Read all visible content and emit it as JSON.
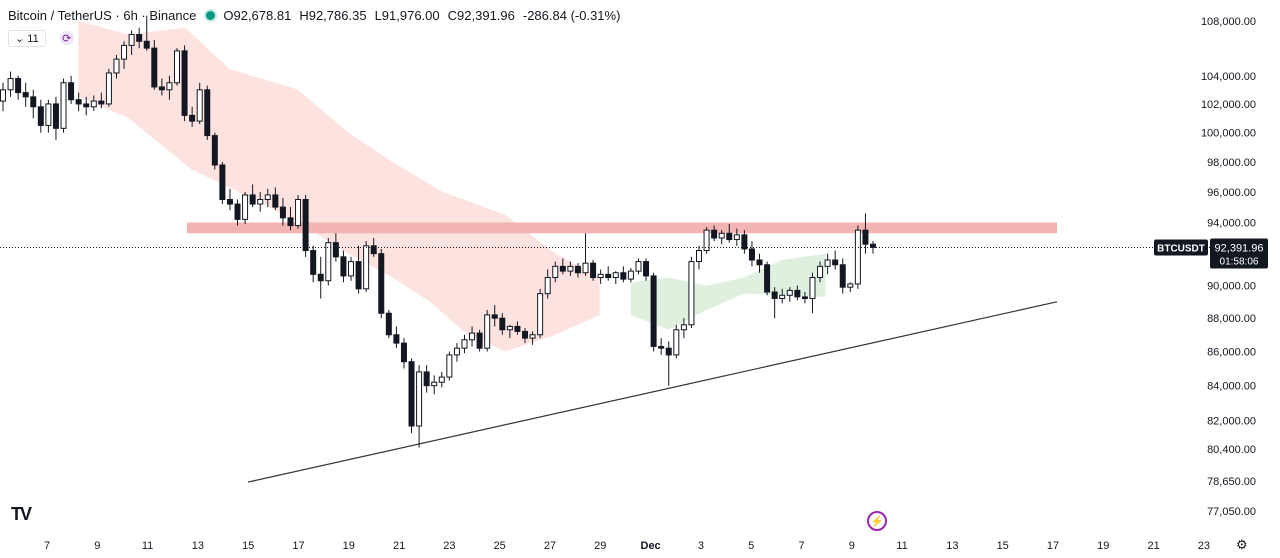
{
  "header": {
    "title": "Bitcoin / TetherUS · 6h · Binance",
    "open_key": "O",
    "open": "92,678.81",
    "high_key": "H",
    "high": "92,786.35",
    "low_key": "L",
    "low": "91,976.00",
    "close_key": "C",
    "close": "92,391.96",
    "change": "-286.84 (-0.31%)"
  },
  "indicators": {
    "toggle_label": "⌄ 11"
  },
  "price_label": {
    "symbol": "BTCUSDT",
    "price": "92,391.96",
    "countdown": "01:58:06"
  },
  "icons": {
    "logo": "tradingview-logo-icon",
    "alert": "lightning-icon",
    "settings": "gear-icon"
  },
  "colors": {
    "up": "#131722",
    "down": "#131722",
    "resistance": "#f3b4b4",
    "cloud_bear": "#fde3df",
    "cloud_bull": "#dff0df",
    "trendline": "#333333"
  },
  "chart_data": {
    "type": "candlestick",
    "symbol": "BTCUSDT",
    "interval": "6h",
    "x_ticks": [
      "7",
      "9",
      "11",
      "13",
      "15",
      "17",
      "19",
      "21",
      "23",
      "25",
      "27",
      "29",
      "Dec",
      "3",
      "5",
      "7",
      "9",
      "11",
      "13",
      "15",
      "17",
      "19",
      "21",
      "23"
    ],
    "y_ticks": [
      "108,000.00",
      "104,000.00",
      "102,000.00",
      "100,000.00",
      "98,000.00",
      "96,000.00",
      "94,000.00",
      "90,000.00",
      "88,000.00",
      "86,000.00",
      "84,000.00",
      "82,000.00",
      "80,400.00",
      "78,650.00",
      "77,050.00"
    ],
    "y_scale": "log",
    "y_range": [
      76500,
      109000
    ],
    "candles": [
      [
        102200,
        103500,
        101500,
        103000
      ],
      [
        103000,
        104300,
        102500,
        103800
      ],
      [
        103800,
        104000,
        102300,
        102800
      ],
      [
        102800,
        103500,
        101800,
        102500
      ],
      [
        102500,
        103000,
        101000,
        101800
      ],
      [
        101800,
        102300,
        100000,
        100500
      ],
      [
        100500,
        102300,
        100000,
        102000
      ],
      [
        102000,
        102500,
        99500,
        100300
      ],
      [
        100300,
        103800,
        100000,
        103500
      ],
      [
        103500,
        104000,
        102000,
        102300
      ],
      [
        102300,
        102800,
        101500,
        102000
      ],
      [
        102000,
        102500,
        101200,
        101800
      ],
      [
        101800,
        102600,
        101500,
        102200
      ],
      [
        102200,
        102800,
        101700,
        102000
      ],
      [
        102000,
        104500,
        101800,
        104200
      ],
      [
        104200,
        105500,
        103800,
        105200
      ],
      [
        105200,
        106500,
        104500,
        106200
      ],
      [
        106200,
        107300,
        105500,
        107000
      ],
      [
        107000,
        107500,
        106000,
        106500
      ],
      [
        106500,
        108400,
        105800,
        106000
      ],
      [
        106000,
        106600,
        103000,
        103200
      ],
      [
        103200,
        103800,
        102600,
        103000
      ],
      [
        103000,
        104000,
        102300,
        103500
      ],
      [
        103500,
        106000,
        103300,
        105800
      ],
      [
        105800,
        106200,
        100800,
        101200
      ],
      [
        101200,
        101800,
        100400,
        100800
      ],
      [
        100800,
        103500,
        100600,
        103000
      ],
      [
        103000,
        103300,
        99500,
        99800
      ],
      [
        99800,
        100000,
        97500,
        97800
      ],
      [
        97800,
        98000,
        95200,
        95500
      ],
      [
        95500,
        96200,
        94800,
        95200
      ],
      [
        95200,
        95500,
        93800,
        94200
      ],
      [
        94200,
        96000,
        93900,
        95800
      ],
      [
        95800,
        96500,
        95000,
        95200
      ],
      [
        95200,
        96000,
        94700,
        95500
      ],
      [
        95500,
        96200,
        95000,
        95800
      ],
      [
        95800,
        96300,
        94800,
        95000
      ],
      [
        95000,
        95600,
        93800,
        94300
      ],
      [
        94300,
        95000,
        93500,
        93800
      ],
      [
        93800,
        95800,
        93600,
        95500
      ],
      [
        95500,
        95800,
        91800,
        92200
      ],
      [
        92200,
        92500,
        90200,
        90700
      ],
      [
        90700,
        91800,
        89200,
        90300
      ],
      [
        90300,
        93000,
        90000,
        92700
      ],
      [
        92700,
        93300,
        91500,
        91800
      ],
      [
        91800,
        92200,
        90200,
        90600
      ],
      [
        90600,
        91800,
        90300,
        91500
      ],
      [
        91500,
        92500,
        89500,
        89800
      ],
      [
        89800,
        92800,
        89600,
        92500
      ],
      [
        92500,
        93000,
        91800,
        92000
      ],
      [
        92000,
        92300,
        88000,
        88300
      ],
      [
        88300,
        88500,
        86800,
        87000
      ],
      [
        87000,
        87500,
        86200,
        86500
      ],
      [
        86500,
        86800,
        85000,
        85400
      ],
      [
        85400,
        85600,
        81300,
        81700
      ],
      [
        81700,
        85200,
        80500,
        84800
      ],
      [
        84800,
        85200,
        83600,
        84000
      ],
      [
        84000,
        84600,
        83500,
        84200
      ],
      [
        84200,
        84800,
        83900,
        84500
      ],
      [
        84500,
        86000,
        84300,
        85800
      ],
      [
        85800,
        86500,
        85400,
        86200
      ],
      [
        86200,
        87000,
        85900,
        86700
      ],
      [
        86700,
        87500,
        86300,
        87100
      ],
      [
        87100,
        87300,
        86000,
        86200
      ],
      [
        86200,
        88500,
        86000,
        88200
      ],
      [
        88200,
        88800,
        87500,
        88000
      ],
      [
        88000,
        88300,
        87000,
        87300
      ],
      [
        87300,
        87600,
        86800,
        87500
      ],
      [
        87500,
        87800,
        87000,
        87200
      ],
      [
        87200,
        87400,
        86500,
        86800
      ],
      [
        86800,
        87200,
        86400,
        87000
      ],
      [
        87000,
        89800,
        86800,
        89500
      ],
      [
        89500,
        91000,
        89200,
        90500
      ],
      [
        90500,
        91500,
        90200,
        91200
      ],
      [
        91200,
        91700,
        90700,
        90900
      ],
      [
        90900,
        91500,
        90600,
        91200
      ],
      [
        91200,
        91400,
        90500,
        90800
      ],
      [
        90800,
        93300,
        90600,
        91400
      ],
      [
        91400,
        91600,
        90300,
        90500
      ],
      [
        90500,
        91000,
        90100,
        90700
      ],
      [
        90700,
        91200,
        90300,
        90500
      ],
      [
        90500,
        90900,
        90100,
        90800
      ],
      [
        90800,
        91200,
        90200,
        90400
      ],
      [
        90400,
        91100,
        90200,
        90900
      ],
      [
        90900,
        91700,
        90700,
        91500
      ],
      [
        91500,
        91700,
        90300,
        90600
      ],
      [
        90600,
        90800,
        86000,
        86300
      ],
      [
        86300,
        86800,
        85800,
        86200
      ],
      [
        86200,
        86600,
        84000,
        85800
      ],
      [
        85800,
        87600,
        85600,
        87300
      ],
      [
        87300,
        88000,
        86800,
        87600
      ],
      [
        87600,
        91800,
        87400,
        91500
      ],
      [
        91500,
        92500,
        91000,
        92200
      ],
      [
        92200,
        93700,
        92000,
        93500
      ],
      [
        93500,
        93800,
        92800,
        93000
      ],
      [
        93000,
        93500,
        92600,
        93300
      ],
      [
        93300,
        93900,
        92700,
        92900
      ],
      [
        92900,
        93600,
        92500,
        93200
      ],
      [
        93200,
        93500,
        92000,
        92300
      ],
      [
        92300,
        92800,
        91200,
        91600
      ],
      [
        91600,
        92000,
        90800,
        91300
      ],
      [
        91300,
        91500,
        89400,
        89600
      ],
      [
        89600,
        89900,
        88000,
        89200
      ],
      [
        89200,
        89800,
        88900,
        89400
      ],
      [
        89400,
        89900,
        89000,
        89700
      ],
      [
        89700,
        90000,
        89100,
        89300
      ],
      [
        89300,
        89600,
        88900,
        89200
      ],
      [
        89200,
        90800,
        88300,
        90500
      ],
      [
        90500,
        91500,
        90200,
        91200
      ],
      [
        91200,
        92000,
        90700,
        91600
      ],
      [
        91600,
        92200,
        91000,
        91300
      ],
      [
        91300,
        91700,
        89500,
        89900
      ],
      [
        89900,
        90200,
        89600,
        90100
      ],
      [
        90100,
        93800,
        89800,
        93500
      ],
      [
        93500,
        94600,
        92000,
        92600
      ],
      [
        92600,
        92800,
        92000,
        92400
      ]
    ],
    "resistance_zone": [
      93300,
      94000
    ],
    "trendline": [
      [
        "2024-11-16",
        78600
      ],
      [
        "2024-12-17",
        89000
      ]
    ],
    "last_price": 92391.96
  }
}
